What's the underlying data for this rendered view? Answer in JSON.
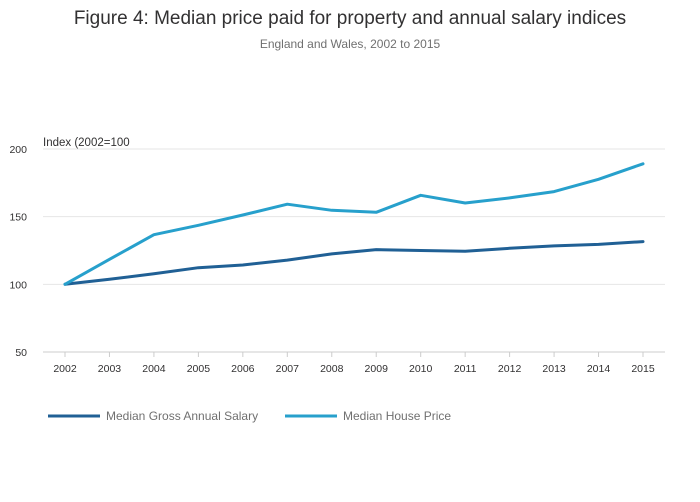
{
  "chart_data": {
    "type": "line",
    "title": "Figure 4: Median price paid for property and annual salary indices",
    "subtitle": "England and Wales, 2002 to 2015",
    "ylabel": "Index (2002=100",
    "xlabel": "",
    "ylim": [
      50,
      200
    ],
    "yticks": [
      "50",
      "100",
      "150",
      "200"
    ],
    "grid": true,
    "legend_position": "bottom-left",
    "x": [
      "2002",
      "2003",
      "2004",
      "2005",
      "2006",
      "2007",
      "2008",
      "2009",
      "2010",
      "2011",
      "2012",
      "2013",
      "2014",
      "2015"
    ],
    "series": [
      {
        "name": "Median Gross Annual Salary",
        "color": "#206095",
        "values": [
          100,
          103.7,
          107.8,
          112.3,
          114.3,
          117.9,
          122.5,
          125.7,
          125.0,
          124.5,
          126.6,
          128.4,
          129.5,
          131.6
        ]
      },
      {
        "name": "Median House Price",
        "color": "#27a0cc",
        "values": [
          100,
          118.5,
          136.7,
          143.6,
          151.2,
          159.2,
          154.7,
          153.2,
          165.8,
          160.1,
          163.9,
          168.5,
          177.6,
          189.1
        ]
      }
    ]
  }
}
